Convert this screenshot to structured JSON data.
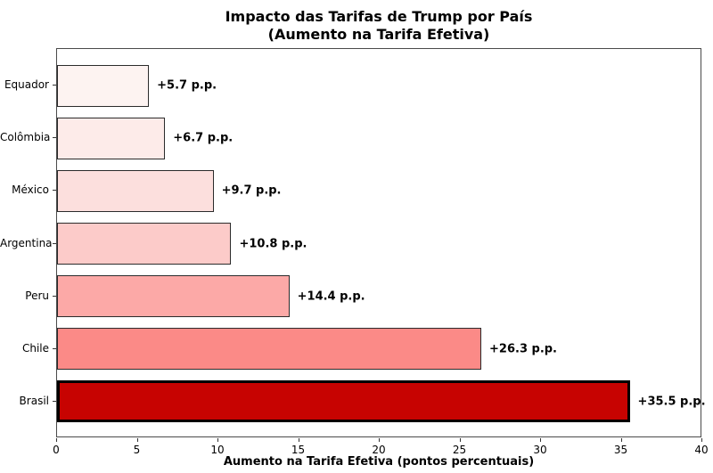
{
  "title": {
    "line1": "Impacto das Tarifas de Trump por País",
    "line2": "(Aumento na Tarifa Efetiva)"
  },
  "chart_data": {
    "type": "bar",
    "orientation": "horizontal",
    "title": "Impacto das Tarifas de Trump por País (Aumento na Tarifa Efetiva)",
    "xlabel": "Aumento na Tarifa Efetiva (pontos percentuais)",
    "ylabel": "",
    "categories": [
      "Equador",
      "Colômbia",
      "México",
      "Argentina",
      "Peru",
      "Chile",
      "Brasil"
    ],
    "values": [
      5.7,
      6.7,
      9.7,
      10.8,
      14.4,
      26.3,
      35.5
    ],
    "bar_labels": [
      "+5.7 p.p.",
      "+6.7 p.p.",
      "+9.7 p.p.",
      "+10.8 p.p.",
      "+14.4 p.p.",
      "+26.3 p.p.",
      "+35.5 p.p."
    ],
    "bar_colors": [
      "#FDF3F1",
      "#FDEBE9",
      "#FCDFDD",
      "#FCCBC9",
      "#FCA9A7",
      "#FB8A87",
      "#C70301"
    ],
    "edge_color": "#2B2B2B",
    "highlight_index": 6,
    "highlight_edge_color": "#000000",
    "xlim": [
      0,
      40
    ],
    "x_ticks": [
      0,
      5,
      10,
      15,
      20,
      25,
      30,
      35,
      40
    ],
    "grid": false,
    "legend": null
  }
}
